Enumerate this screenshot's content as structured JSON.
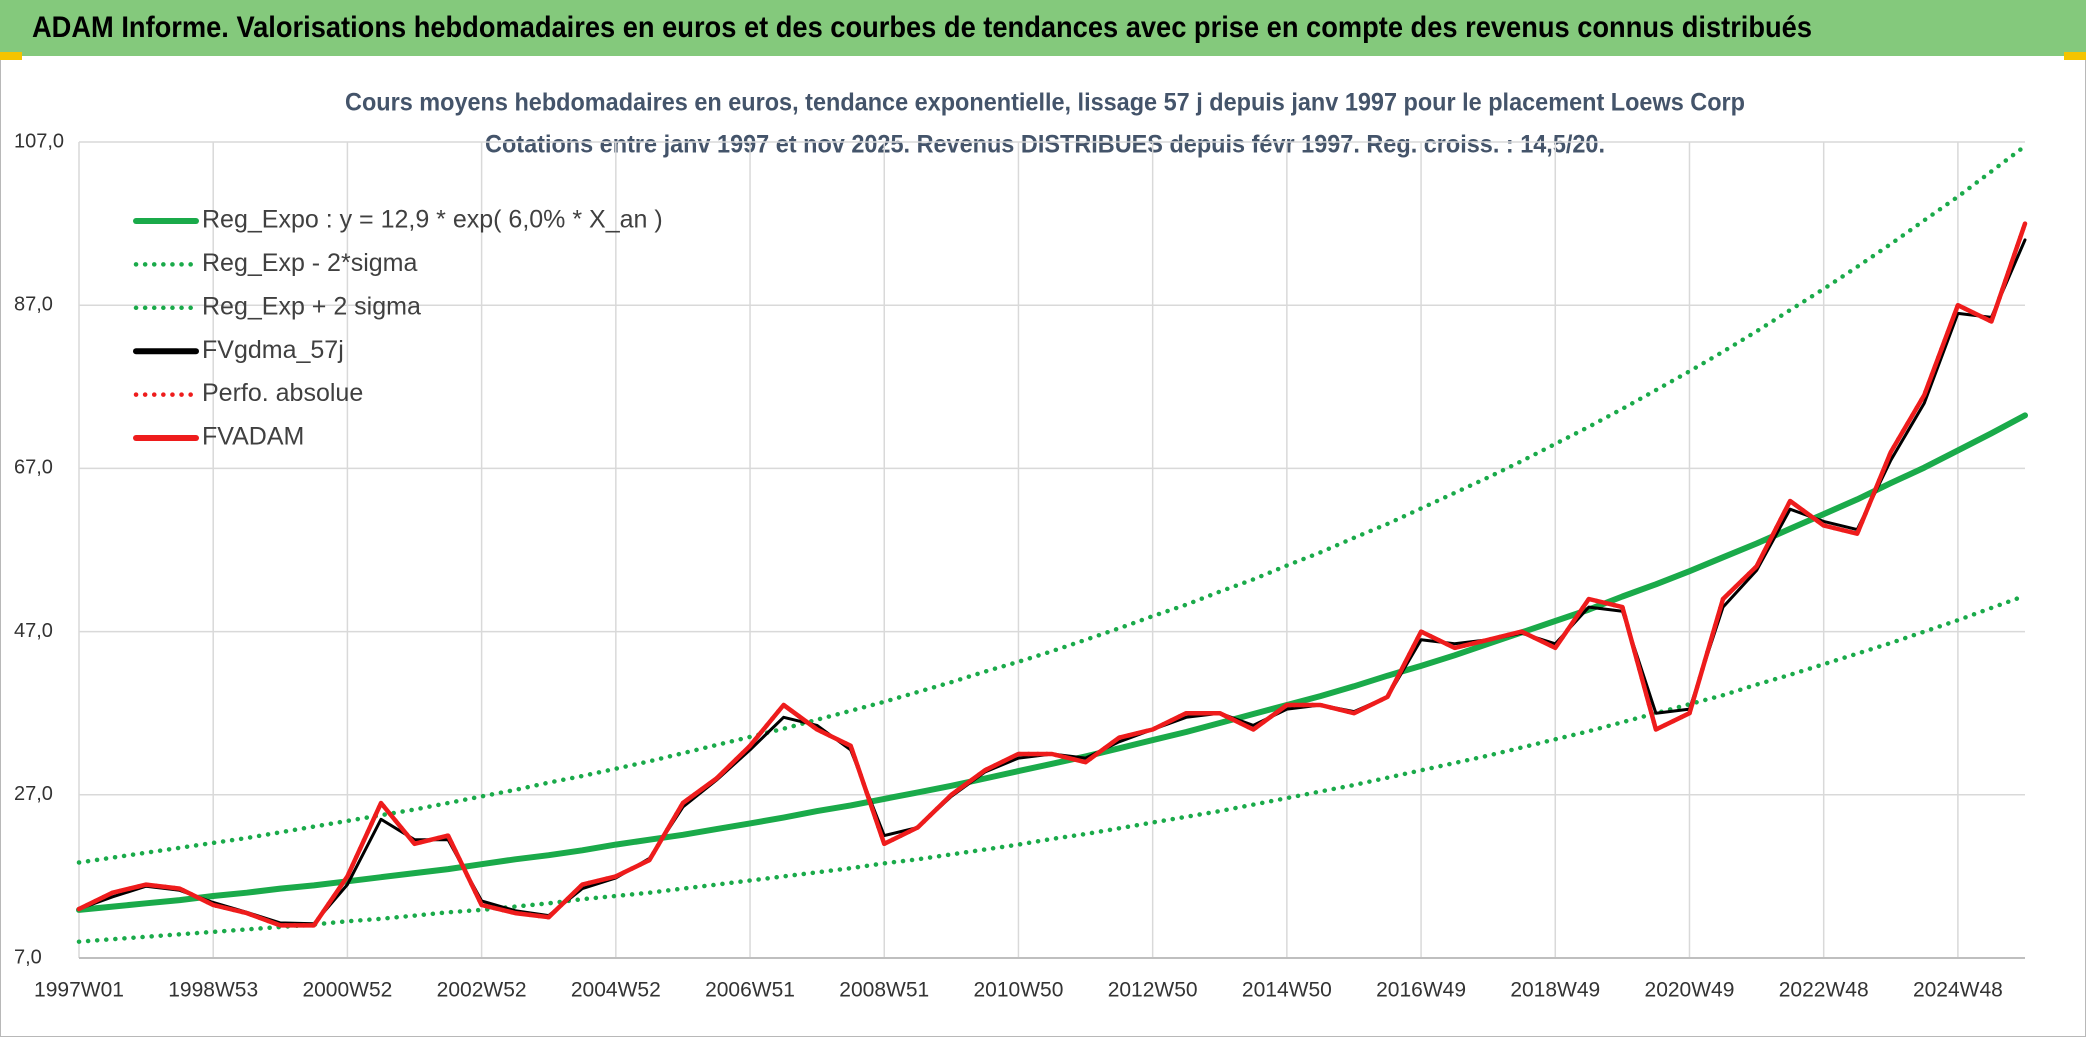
{
  "header": {
    "title": "ADAM Informe. Valorisations hebdomadaires en euros et des courbes de tendances avec prise en compte des revenus connus distribués"
  },
  "chart_data": {
    "type": "line",
    "title": "Cours moyens hebdomadaires en euros, tendance exponentielle, lissage 57 j depuis janv 1997 pour le placement Loews Corp",
    "subtitle": "Cotations entre janv 1997 et nov 2025. Revenus DISTRIBUES depuis févr 1997. Reg. croiss. : 14,5/20.",
    "categories": [
      "1997W01",
      null,
      null,
      null,
      "1998W53",
      null,
      null,
      null,
      "2000W52",
      null,
      null,
      null,
      "2002W52",
      null,
      null,
      null,
      "2004W52",
      null,
      null,
      null,
      "2006W51",
      null,
      null,
      null,
      "2008W51",
      null,
      null,
      null,
      "2010W50",
      null,
      null,
      null,
      "2012W50",
      null,
      null,
      null,
      "2014W50",
      null,
      null,
      null,
      "2016W49",
      null,
      null,
      null,
      "2018W49",
      null,
      null,
      null,
      "2020W49",
      null,
      null,
      null,
      "2022W48",
      null,
      null,
      null,
      "2024W48",
      null,
      null
    ],
    "ylim": [
      7,
      107
    ],
    "yticks": [
      {
        "value": 7,
        "label": "7,0"
      },
      {
        "value": 27,
        "label": "27,0"
      },
      {
        "value": 47,
        "label": "47,0"
      },
      {
        "value": 67,
        "label": "67,0"
      },
      {
        "value": 87,
        "label": "87,0"
      },
      {
        "value": 107,
        "label": "107,0"
      }
    ],
    "grid": true,
    "legend": "top-left",
    "series": [
      {
        "name": "Reg_Expo : y = 12,9 * exp( 6,0% *  X_an )",
        "color": "#1aaa4a",
        "style": "solid",
        "values": [
          12.9,
          13.3,
          13.7,
          14.1,
          14.6,
          15.0,
          15.5,
          15.9,
          16.4,
          16.9,
          17.4,
          17.9,
          18.5,
          19.1,
          19.6,
          20.2,
          20.9,
          21.5,
          22.1,
          22.8,
          23.5,
          24.2,
          25.0,
          25.7,
          26.5,
          27.3,
          28.1,
          29.0,
          29.9,
          30.8,
          31.7,
          32.7,
          33.7,
          34.7,
          35.8,
          36.9,
          38.0,
          39.1,
          40.3,
          41.6,
          42.8,
          44.1,
          45.5,
          46.9,
          48.3,
          49.7,
          51.3,
          52.8,
          54.4,
          56.1,
          57.8,
          59.6,
          61.4,
          63.2,
          65.2,
          67.1,
          69.2,
          71.3,
          73.5
        ]
      },
      {
        "name": "Reg_Exp - 2*sigma",
        "color": "#1aaa4a",
        "style": "dotted",
        "values": [
          9.0,
          9.3,
          9.6,
          9.9,
          10.2,
          10.5,
          10.8,
          11.1,
          11.5,
          11.8,
          12.2,
          12.6,
          12.9,
          13.3,
          13.7,
          14.2,
          14.6,
          15.0,
          15.5,
          16.0,
          16.5,
          17.0,
          17.5,
          18.0,
          18.6,
          19.1,
          19.7,
          20.3,
          20.9,
          21.6,
          22.2,
          22.9,
          23.6,
          24.3,
          25.0,
          25.8,
          26.6,
          27.4,
          28.2,
          29.1,
          30.0,
          30.9,
          31.8,
          32.8,
          33.8,
          34.8,
          35.9,
          37.0,
          38.1,
          39.2,
          40.5,
          41.7,
          43.0,
          44.3,
          45.6,
          47.0,
          48.4,
          49.9,
          51.4
        ]
      },
      {
        "name": "Reg_Exp + 2 sigma",
        "color": "#1aaa4a",
        "style": "dotted",
        "values": [
          18.7,
          19.3,
          19.9,
          20.5,
          21.1,
          21.7,
          22.4,
          23.1,
          23.8,
          24.5,
          25.2,
          26.0,
          26.8,
          27.6,
          28.5,
          29.3,
          30.2,
          31.1,
          32.1,
          33.1,
          34.1,
          35.1,
          36.2,
          37.3,
          38.4,
          39.6,
          40.8,
          42.1,
          43.3,
          44.6,
          46.0,
          47.4,
          48.9,
          50.3,
          51.9,
          53.4,
          55.1,
          56.7,
          58.5,
          60.2,
          62.1,
          64.0,
          65.9,
          67.9,
          70.0,
          72.1,
          74.3,
          76.6,
          78.9,
          81.3,
          83.8,
          86.4,
          89.0,
          91.7,
          94.5,
          97.4,
          100.3,
          103.4,
          106.5
        ]
      },
      {
        "name": "FVgdma_57j",
        "color": "#000000",
        "style": "solid",
        "values": [
          13,
          14.5,
          15.8,
          15.3,
          13.8,
          12.6,
          11.3,
          11.2,
          16,
          24,
          21.5,
          21.5,
          14,
          12.8,
          12.2,
          15.5,
          16.8,
          19.2,
          25.5,
          28.8,
          32.5,
          36.5,
          35.5,
          32.5,
          22,
          23,
          26.8,
          29.8,
          31.5,
          32,
          31.5,
          33.5,
          35,
          36.5,
          37,
          35.5,
          37.5,
          38,
          37.2,
          39,
          46,
          45.5,
          46,
          46.8,
          45.5,
          50,
          49.5,
          37,
          37.5,
          50,
          54.5,
          62,
          60.5,
          59.5,
          68,
          75,
          86,
          85.5,
          95
        ]
      },
      {
        "name": "Perfo. absolue",
        "color": "#ee1c1c",
        "style": "dotted",
        "values": [
          13,
          15,
          16,
          15.5,
          13.5,
          12.5,
          11,
          11,
          17,
          26,
          21,
          22,
          13.5,
          12.5,
          12,
          16,
          17,
          19,
          26,
          29,
          33,
          38,
          35,
          33,
          21,
          23,
          27,
          30,
          32,
          32,
          31,
          34,
          35,
          37,
          37,
          35,
          38,
          38,
          37,
          39,
          47,
          45,
          46,
          47,
          45,
          51,
          50,
          35,
          37,
          51,
          55,
          63,
          60,
          59,
          69,
          76,
          87,
          85,
          97
        ]
      },
      {
        "name": "FVADAM",
        "color": "#ee1c1c",
        "style": "solid",
        "values": [
          13,
          15,
          16,
          15.5,
          13.5,
          12.5,
          11,
          11,
          17,
          26,
          21,
          22,
          13.5,
          12.5,
          12,
          16,
          17,
          19,
          26,
          29,
          33,
          38,
          35,
          33,
          21,
          23,
          27,
          30,
          32,
          32,
          31,
          34,
          35,
          37,
          37,
          35,
          38,
          38,
          37,
          39,
          47,
          45,
          46,
          47,
          45,
          51,
          50,
          35,
          37,
          51,
          55,
          63,
          60,
          59,
          69,
          76,
          87,
          85,
          97
        ]
      }
    ]
  }
}
